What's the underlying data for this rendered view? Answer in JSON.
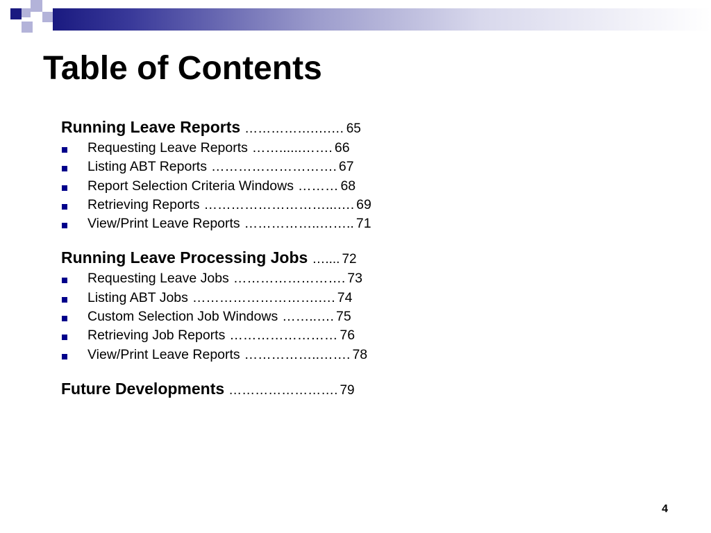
{
  "title": "Table of Contents",
  "colors": {
    "bullet": "#00008b",
    "header_dark": "#1a1a80",
    "header_light": "#b3b3d9"
  },
  "sections": [
    {
      "name": "Running Leave Reports",
      "leader": "…………….….…",
      "page": "65",
      "items": [
        {
          "name": "Requesting Leave Reports",
          "leader": "……......…….",
          "page": "66"
        },
        {
          "name": "Listing ABT Reports",
          "leader": "……………………….",
          "page": "67"
        },
        {
          "name": "Report Selection Criteria Windows",
          "leader": "………",
          "page": "68"
        },
        {
          "name": "Retrieving Reports",
          "leader": "………………………...….",
          "page": "69"
        },
        {
          "name": "View/Print Leave Reports",
          "leader": "……………..…….. ",
          "page": "71"
        }
      ]
    },
    {
      "name": "Running Leave Processing Jobs",
      "leader": "…....",
      "page": "72",
      "items": [
        {
          "name": "Requesting Leave Jobs",
          "leader": "…………………….",
          "page": "73"
        },
        {
          "name": "Listing ABT Jobs",
          "leader": "……………………….….",
          "page": "74"
        },
        {
          "name": "Custom Selection Job Windows",
          "leader": "……..….",
          "page": "75"
        },
        {
          "name": "Retrieving Job Reports",
          "leader": "……………………",
          "page": "76"
        },
        {
          "name": "View/Print Leave Reports",
          "leader": "……………..…….",
          "page": "78"
        }
      ]
    },
    {
      "name": "Future Developments",
      "leader": "…………………….",
      "page": "79",
      "items": []
    }
  ],
  "slide_number": "4"
}
